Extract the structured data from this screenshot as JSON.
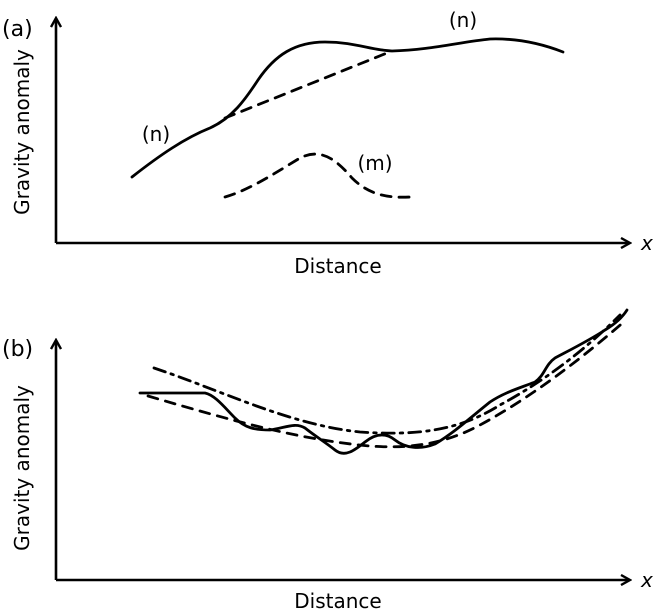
{
  "panel_a": {
    "label": "(a)",
    "y_axis_label": "Gravity anomaly",
    "x_axis_label": "Distance",
    "x_symbol": "x",
    "annotations": {
      "n_left": "(n)",
      "n_right": "(n)",
      "m": "(m)"
    }
  },
  "panel_b": {
    "label": "(b)",
    "y_axis_label": "Gravity anomaly",
    "x_axis_label": "Distance",
    "x_symbol": "x"
  }
}
